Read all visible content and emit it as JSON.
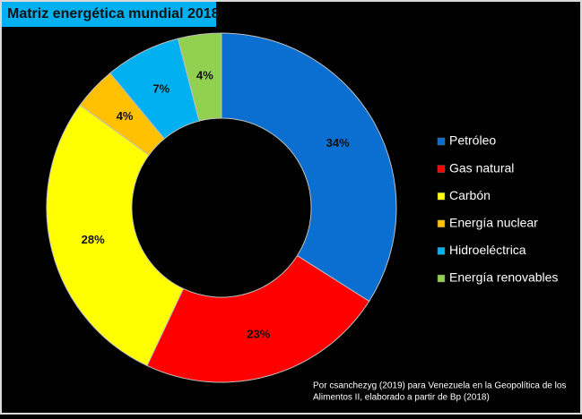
{
  "chart_data": {
    "type": "donut",
    "title": "Matriz energética mundial 2018",
    "categories": [
      "Petróleo",
      "Gas natural",
      "Carbón",
      "Energía nuclear",
      "Hidroeléctrica",
      "Energía renovables"
    ],
    "values": [
      34,
      23,
      28,
      4,
      7,
      4
    ],
    "value_labels": [
      "34%",
      "23%",
      "28%",
      "4%",
      "7%",
      "4%"
    ],
    "colors": [
      "#0a6fd0",
      "#ff0000",
      "#ffff00",
      "#ffc000",
      "#00b0f0",
      "#92d050"
    ],
    "legend": "right",
    "source": [
      "Por csanchezyg (2019)  para  Venezuela  en la Geopolítica  de los",
      "Alimentos  II, elaborado  a  partir de Bp (2018)"
    ]
  }
}
